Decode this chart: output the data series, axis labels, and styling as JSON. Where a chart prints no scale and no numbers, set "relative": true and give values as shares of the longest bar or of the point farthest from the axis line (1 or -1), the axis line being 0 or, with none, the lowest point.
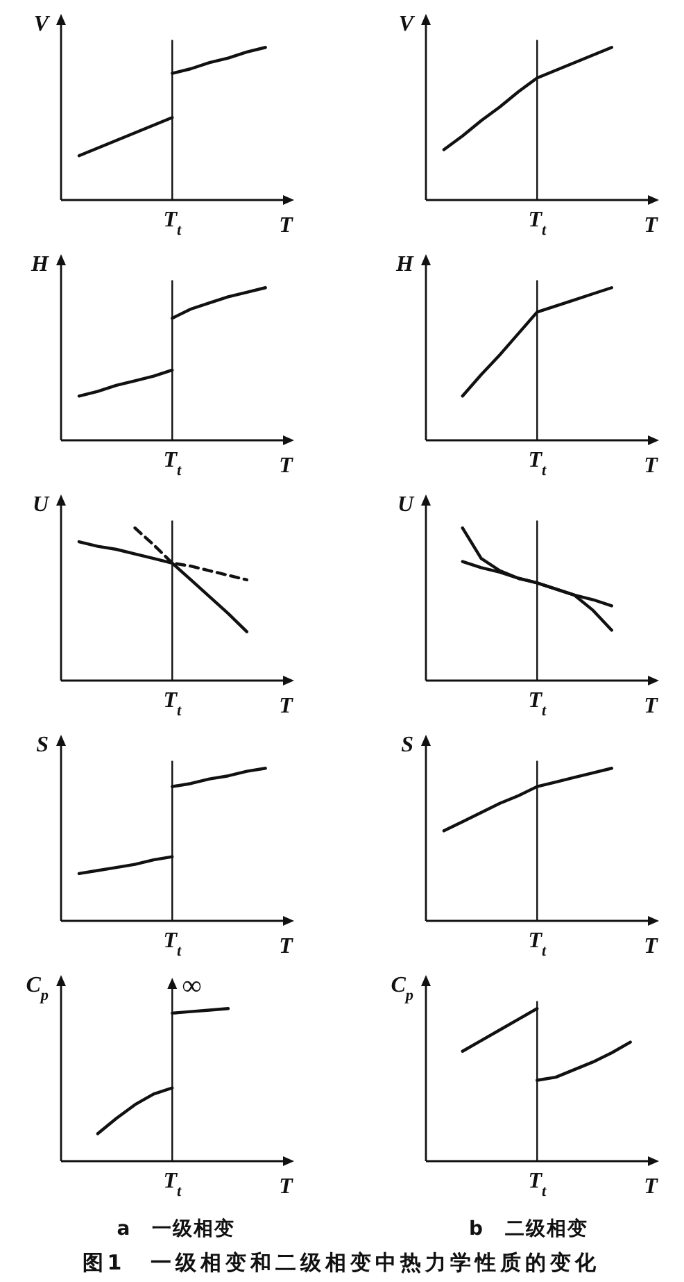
{
  "chart_data": [
    {
      "type": "line",
      "ylabel": "V",
      "xlabel": "T",
      "relative": true,
      "categories": [
        null,
        null,
        null,
        null,
        null,
        null,
        null,
        null,
        null,
        null,
        null
      ],
      "series": [
        {
          "color": "#111111",
          "values": [
            0.29,
            0.34,
            0.39,
            0.44,
            0.49,
            0.54,
            null,
            null,
            null,
            null,
            null
          ]
        },
        {
          "color": "#111111",
          "values": [
            null,
            null,
            null,
            null,
            null,
            0.83,
            0.86,
            0.9,
            0.93,
            0.97,
            1.0
          ]
        }
      ],
      "annotations": [
        "T$_{t}$"
      ]
    },
    {
      "type": "line",
      "ylabel": "V",
      "xlabel": "T",
      "relative": true,
      "categories": [
        null,
        null,
        null,
        null,
        null,
        null,
        null,
        null,
        null,
        null,
        null
      ],
      "series": [
        {
          "color": "#111111",
          "values": [
            0.33,
            0.42,
            0.52,
            0.61,
            0.71,
            0.8,
            0.85,
            0.9,
            0.95,
            1.0,
            null
          ]
        }
      ],
      "annotations": [
        "T$_{t}$"
      ]
    },
    {
      "type": "line",
      "ylabel": "H",
      "xlabel": "T",
      "relative": true,
      "categories": [
        null,
        null,
        null,
        null,
        null,
        null,
        null,
        null,
        null,
        null,
        null
      ],
      "series": [
        {
          "color": "#111111",
          "values": [
            0.29,
            0.32,
            0.36,
            0.39,
            0.42,
            0.46,
            null,
            null,
            null,
            null,
            null
          ]
        },
        {
          "color": "#111111",
          "values": [
            null,
            null,
            null,
            null,
            null,
            0.8,
            0.86,
            0.9,
            0.94,
            0.97,
            1.0
          ]
        }
      ],
      "annotations": [
        "T$_{t}$"
      ]
    },
    {
      "type": "line",
      "ylabel": "H",
      "xlabel": "T",
      "relative": true,
      "categories": [
        null,
        null,
        null,
        null,
        null,
        null,
        null,
        null,
        null,
        null,
        null
      ],
      "series": [
        {
          "color": "#111111",
          "values": [
            null,
            0.29,
            0.43,
            0.56,
            0.7,
            0.84,
            0.88,
            0.92,
            0.96,
            1.0,
            null
          ]
        }
      ],
      "annotations": [
        "T$_{t}$"
      ]
    },
    {
      "type": "line",
      "ylabel": "U",
      "xlabel": "T",
      "relative": true,
      "categories": [
        null,
        null,
        null,
        null,
        null,
        null,
        null,
        null,
        null,
        null,
        null
      ],
      "series": [
        {
          "color": "#111111",
          "values": [
            0.91,
            0.88,
            0.86,
            0.83,
            0.8,
            0.77,
            0.66,
            0.55,
            0.44,
            0.32,
            null
          ]
        },
        {
          "color": "#111111",
          "line_style": "dashed",
          "values": [
            null,
            null,
            null,
            1.0,
            0.89,
            0.77,
            0.75,
            0.72,
            0.69,
            0.66,
            null
          ]
        }
      ],
      "annotations": [
        "T$_{t}$"
      ]
    },
    {
      "type": "line",
      "ylabel": "U",
      "xlabel": "T",
      "relative": true,
      "categories": [
        null,
        null,
        null,
        null,
        null,
        null,
        null,
        null,
        null,
        null,
        null
      ],
      "series": [
        {
          "color": "#111111",
          "values": [
            null,
            0.78,
            0.74,
            0.71,
            0.67,
            0.64,
            0.6,
            0.56,
            0.53,
            0.49,
            null
          ]
        },
        {
          "color": "#111111",
          "values": [
            null,
            1.0,
            0.8,
            0.72,
            0.67,
            0.64,
            0.6,
            0.56,
            0.46,
            0.33,
            null
          ]
        }
      ],
      "annotations": [
        "T$_{t}$"
      ]
    },
    {
      "type": "line",
      "ylabel": "S",
      "xlabel": "T",
      "relative": true,
      "categories": [
        null,
        null,
        null,
        null,
        null,
        null,
        null,
        null,
        null,
        null,
        null
      ],
      "series": [
        {
          "color": "#111111",
          "values": [
            0.31,
            0.33,
            0.35,
            0.37,
            0.4,
            0.42,
            null,
            null,
            null,
            null,
            null
          ]
        },
        {
          "color": "#111111",
          "values": [
            null,
            null,
            null,
            null,
            null,
            0.88,
            0.9,
            0.93,
            0.95,
            0.98,
            1.0
          ]
        }
      ],
      "annotations": [
        "T$_{t}$"
      ]
    },
    {
      "type": "line",
      "ylabel": "S",
      "xlabel": "T",
      "relative": true,
      "categories": [
        null,
        null,
        null,
        null,
        null,
        null,
        null,
        null,
        null,
        null,
        null
      ],
      "series": [
        {
          "color": "#111111",
          "values": [
            0.59,
            0.65,
            0.71,
            0.77,
            0.82,
            0.88,
            0.91,
            0.94,
            0.97,
            1.0,
            null
          ]
        }
      ],
      "annotations": [
        "T$_{t}$"
      ]
    },
    {
      "type": "line",
      "ylabel": "C$_{p}$",
      "xlabel": "T",
      "relative": true,
      "categories": [
        null,
        null,
        null,
        null,
        null,
        null,
        null,
        null,
        null,
        null,
        null
      ],
      "series": [
        {
          "color": "#111111",
          "values": [
            null,
            0.18,
            0.28,
            0.37,
            0.44,
            0.48,
            null,
            null,
            null,
            null,
            null
          ]
        },
        {
          "color": "#111111",
          "values": [
            null,
            null,
            null,
            null,
            null,
            0.97,
            0.98,
            0.99,
            1.0,
            null,
            null
          ]
        }
      ],
      "annotations": [
        "T$_{t}$",
        "∞"
      ]
    },
    {
      "type": "line",
      "ylabel": "C$_{p}$",
      "xlabel": "T",
      "relative": true,
      "categories": [
        null,
        null,
        null,
        null,
        null,
        null,
        null,
        null,
        null,
        null,
        null
      ],
      "series": [
        {
          "color": "#111111",
          "values": [
            null,
            0.72,
            0.79,
            0.86,
            0.93,
            1.0,
            null,
            null,
            null,
            null,
            null
          ]
        },
        {
          "color": "#111111",
          "values": [
            null,
            null,
            null,
            null,
            null,
            0.53,
            0.55,
            0.6,
            0.65,
            0.71,
            0.78
          ]
        }
      ],
      "annotations": [
        "T$_{t}$"
      ]
    },
    {
      "type": "other",
      "title": "图1　一级相变和二级相变中热力学性质的变化",
      "annotations": [
        "a　一级相变",
        "b　二级相变"
      ]
    }
  ]
}
